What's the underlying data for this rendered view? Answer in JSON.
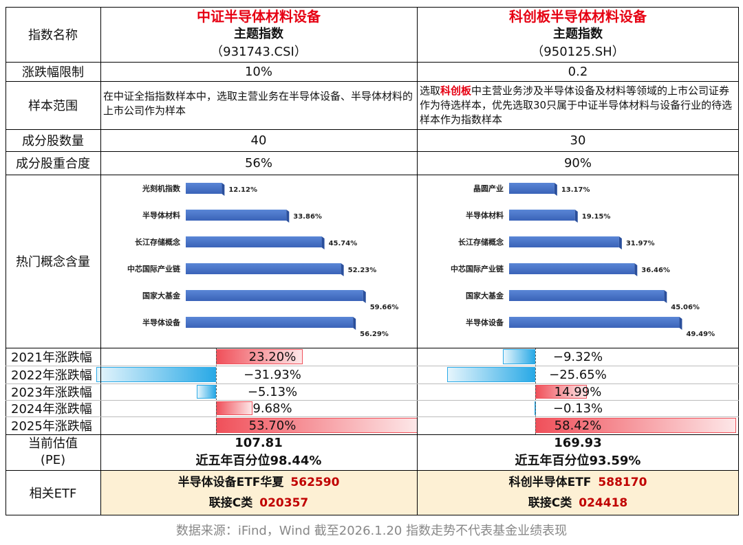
{
  "header": {
    "row_label": "指数名称",
    "left": {
      "name": "中证半导体材料设备",
      "subtitle": "主题指数",
      "code": "（931743.CSI）"
    },
    "right": {
      "name": "科创板半导体材料设备",
      "subtitle": "主题指数",
      "code": "（950125.SH）"
    }
  },
  "rows": {
    "limit": {
      "label": "涨跌幅限制",
      "left": "10%",
      "right": "0.2"
    },
    "scope": {
      "label": "样本范围",
      "left": "在中证全指指数样本中，选取主营业务在半导体设备、半导体材料的上市公司作为样本",
      "right_pre": "选取",
      "right_highlight": "科创板",
      "right_post": "中主营业务涉及半导体设备及材料等领域的上市公司证券作为待选样本，优先选取30只属于中证半导体材料与设备行业的待选样本作为指数样本"
    },
    "count": {
      "label": "成分股数量",
      "left": "40",
      "right": "30"
    },
    "overlap": {
      "label": "成分股重合度",
      "left": "56%",
      "right": "90%"
    },
    "concept": {
      "label": "热门概念含量"
    },
    "pe": {
      "label_1": "当前估值",
      "label_2": "(PE)",
      "left_value": "107.81",
      "left_pct": "近五年百分位98.44%",
      "right_value": "169.93",
      "right_pct": "近五年百分位93.59%"
    },
    "etf": {
      "label": "相关ETF",
      "left_1_name": "半导体设备ETF华夏",
      "left_1_code": "562590",
      "left_2_name": "联接C类",
      "left_2_code": "020357",
      "right_1_name": "科创半导体ETF",
      "right_1_code": "588170",
      "right_2_name": "联接C类",
      "right_2_code": "024418"
    }
  },
  "colors": {
    "bar_blue": "#4472c4",
    "pos_red": "#f0505a",
    "neg_blue": "#29a9e6",
    "accent_red": "#e60012",
    "etf_bg": "#fdf0d4"
  },
  "footer": "数据来源：iFind，Wind 截至2026.1.20 指数走势不代表基金业绩表现",
  "chart_data": [
    {
      "type": "bar",
      "orientation": "horizontal",
      "categories": [
        "光刻机指数",
        "半导体材料",
        "长江存储概念",
        "中芯国际产业链",
        "国家大基金",
        "半导体设备"
      ],
      "values": [
        12.12,
        33.86,
        45.74,
        52.23,
        59.66,
        56.29
      ],
      "value_labels": [
        "12.12%",
        "33.86%",
        "45.74%",
        "52.23%",
        "59.66%",
        "56.29%"
      ]
    },
    {
      "type": "bar",
      "orientation": "horizontal",
      "categories": [
        "晶圆产业",
        "半导体材料",
        "长江存储概念",
        "中芯国际产业链",
        "国家大基金",
        "半导体设备"
      ],
      "values": [
        13.17,
        19.15,
        31.97,
        36.46,
        45.06,
        49.49
      ],
      "value_labels": [
        "13.17%",
        "19.15%",
        "31.97%",
        "36.46%",
        "45.06%",
        "49.49%"
      ]
    },
    {
      "type": "bar",
      "orientation": "horizontal",
      "categories": [
        "2021年涨跌幅",
        "2022年涨跌幅",
        "2023年涨跌幅",
        "2024年涨跌幅",
        "2025年涨跌幅"
      ],
      "series": [
        {
          "values": [
            23.2,
            -31.93,
            -5.13,
            9.68,
            53.7
          ],
          "labels": [
            "23.20%",
            "−31.93%",
            "−5.13%",
            "9.68%",
            "53.70%"
          ]
        },
        {
          "values": [
            -9.32,
            -25.65,
            14.99,
            -0.13,
            58.42
          ],
          "labels": [
            "−9.32%",
            "−25.65%",
            "14.99%",
            "−0.13%",
            "58.42%"
          ]
        }
      ]
    }
  ]
}
